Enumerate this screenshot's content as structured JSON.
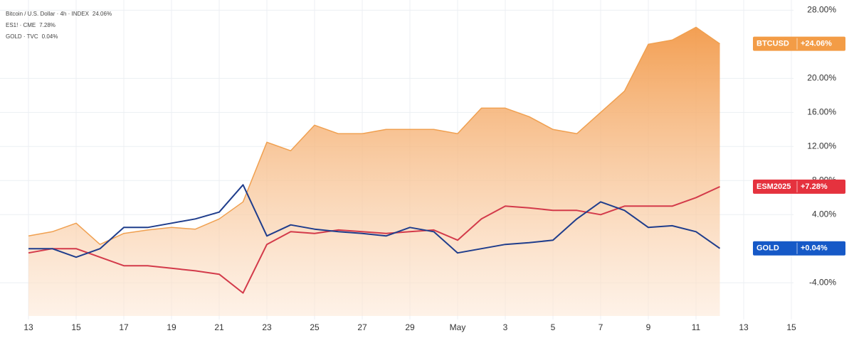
{
  "chart_data": {
    "type": "line",
    "categories": [
      "13",
      null,
      "15",
      null,
      "17",
      null,
      "19",
      null,
      "21",
      null,
      "23",
      null,
      "25",
      null,
      "27",
      null,
      "29",
      null,
      "May",
      null,
      "3",
      null,
      "5",
      null,
      "7",
      null,
      "9",
      null,
      "11",
      null,
      "13",
      null,
      "15"
    ],
    "series": [
      {
        "name": "Bitcoin / U.S. Dollar · 4h · INDEX",
        "legend_value": "24.06%",
        "tag_name": "BTCUSD",
        "tag_value": "+24.06%",
        "color": "#f0a050",
        "tag_color": "#f39c46",
        "area": true,
        "values": [
          1.5,
          2,
          3,
          0.5,
          1.8,
          2.2,
          2.5,
          2.3,
          3.5,
          5.5,
          12.5,
          11.5,
          14.5,
          13.5,
          13.5,
          14,
          14,
          14,
          13.5,
          16.5,
          16.5,
          15.5,
          14,
          13.5,
          16,
          18.5,
          24,
          24.5,
          26,
          24.06,
          null,
          null,
          null
        ]
      },
      {
        "name": "ES1! · CME",
        "legend_value": "7.28%",
        "tag_name": "ESM2025",
        "tag_value": "+7.28%",
        "color": "#d33a4a",
        "tag_color": "#e5323e",
        "area": false,
        "values": [
          -0.5,
          0,
          0,
          -1,
          -2,
          -2,
          -2.3,
          -2.6,
          -3,
          -5.2,
          0.5,
          2,
          1.8,
          2.2,
          2,
          1.8,
          2,
          2.2,
          1,
          3.5,
          5,
          4.8,
          4.5,
          4.5,
          4,
          5,
          5,
          5,
          6,
          7.28,
          null,
          null,
          null
        ]
      },
      {
        "name": "GOLD · TVC",
        "legend_value": "0.04%",
        "tag_name": "GOLD",
        "tag_value": "+0.04%",
        "color": "#1f3d8c",
        "tag_color": "#1659c7",
        "area": false,
        "values": [
          0,
          0,
          -1,
          0,
          2.5,
          2.5,
          3,
          3.5,
          4.3,
          7.5,
          1.5,
          2.8,
          2.3,
          2,
          1.8,
          1.5,
          2.5,
          2,
          -0.5,
          0,
          0.5,
          0.7,
          1,
          3.5,
          5.5,
          4.5,
          2.5,
          2.7,
          2,
          0.04,
          null,
          null,
          null
        ]
      }
    ],
    "ylim": [
      -7.9,
      29.2
    ],
    "yticks": [
      {
        "value": -4,
        "label": "-4.00%"
      },
      {
        "value": 4,
        "label": "4.00%"
      },
      {
        "value": 8,
        "label": "8.00%"
      },
      {
        "value": 12,
        "label": "12.00%"
      },
      {
        "value": 16,
        "label": "16.00%"
      },
      {
        "value": 20,
        "label": "20.00%"
      },
      {
        "value": 28,
        "label": "28.00%"
      }
    ],
    "grid": true
  }
}
